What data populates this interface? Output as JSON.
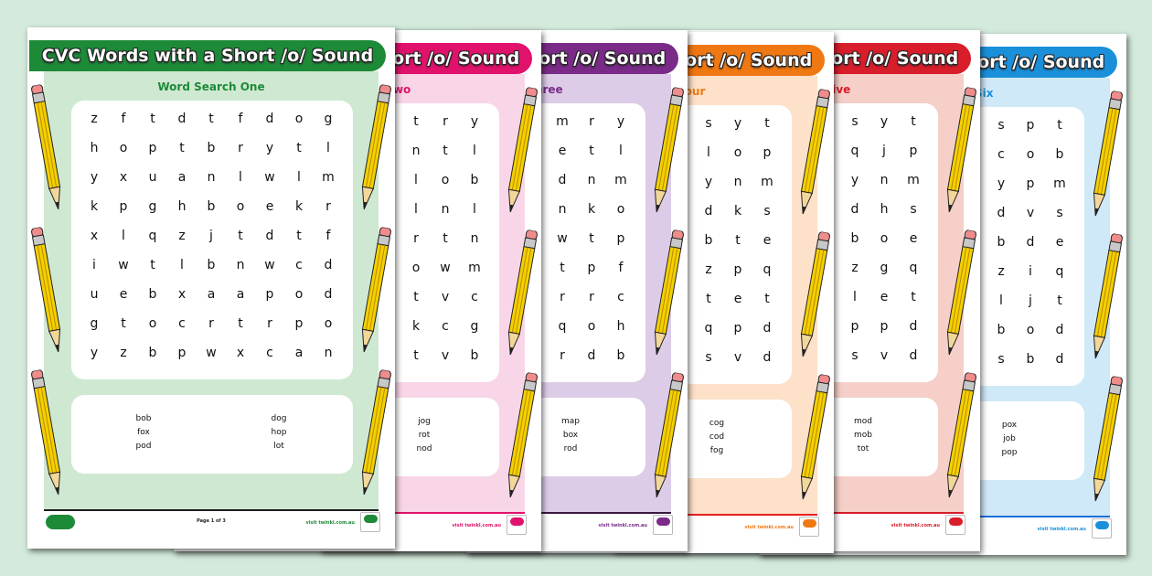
{
  "title": "CVC Words with a Short /o/ Sound",
  "footer_site": "visit twinkl.com.au",
  "logo_text": "twinkl",
  "pages": [
    {
      "subtitle": "Word Search One",
      "accent": "#1d8a38",
      "panel": "#cfe8d2",
      "line": "#1d1d1d",
      "page_label": "Page 1 of 3",
      "grid": [
        [
          "z",
          "f",
          "t",
          "d",
          "t",
          "f",
          "d",
          "o",
          "g"
        ],
        [
          "h",
          "o",
          "p",
          "t",
          "b",
          "r",
          "y",
          "t",
          "l"
        ],
        [
          "y",
          "x",
          "u",
          "a",
          "n",
          "l",
          "w",
          "l",
          "m"
        ],
        [
          "k",
          "p",
          "g",
          "h",
          "b",
          "o",
          "e",
          "k",
          "r"
        ],
        [
          "x",
          "l",
          "q",
          "z",
          "j",
          "t",
          "d",
          "t",
          "f"
        ],
        [
          "i",
          "w",
          "t",
          "l",
          "b",
          "n",
          "w",
          "c",
          "d"
        ],
        [
          "u",
          "e",
          "b",
          "x",
          "a",
          "a",
          "p",
          "o",
          "d"
        ],
        [
          "g",
          "t",
          "o",
          "c",
          "r",
          "t",
          "r",
          "p",
          "o"
        ],
        [
          "y",
          "z",
          "b",
          "p",
          "w",
          "x",
          "c",
          "a",
          "n"
        ]
      ],
      "words": [
        [
          "bob",
          "fox",
          "pod"
        ],
        [
          "dog",
          "hop",
          "lot"
        ]
      ]
    },
    {
      "subtitle": "Word Search Two",
      "accent": "#e0126c",
      "panel": "#f8d6e7",
      "line": "#e0126c",
      "page_label": "",
      "grid": [
        [
          "t",
          "r",
          "y"
        ],
        [
          "n",
          "t",
          "l"
        ],
        [
          "l",
          "o",
          "b"
        ],
        [
          "l",
          "n",
          "l"
        ],
        [
          "r",
          "t",
          "n"
        ],
        [
          "o",
          "w",
          "m"
        ],
        [
          "t",
          "v",
          "c"
        ],
        [
          "k",
          "c",
          "g"
        ],
        [
          "t",
          "v",
          "b"
        ]
      ],
      "words": [
        [
          "jog",
          "rot",
          "nod"
        ]
      ]
    },
    {
      "subtitle": "Word Search Three",
      "accent": "#7a2b88",
      "panel": "#dccce7",
      "line": "#3a1a40",
      "page_label": "",
      "grid": [
        [
          "m",
          "r",
          "y"
        ],
        [
          "e",
          "t",
          "l"
        ],
        [
          "d",
          "n",
          "m"
        ],
        [
          "n",
          "k",
          "o"
        ],
        [
          "w",
          "t",
          "p"
        ],
        [
          "t",
          "p",
          "f"
        ],
        [
          "r",
          "r",
          "c"
        ],
        [
          "q",
          "o",
          "h"
        ],
        [
          "r",
          "d",
          "b"
        ]
      ],
      "words": [
        [
          "map",
          "box",
          "rod"
        ]
      ]
    },
    {
      "subtitle": "Word Search Four",
      "accent": "#f07813",
      "panel": "#fde1c9",
      "line": "#e8201e",
      "page_label": "",
      "grid": [
        [
          "s",
          "y",
          "t"
        ],
        [
          "l",
          "o",
          "p"
        ],
        [
          "y",
          "n",
          "m"
        ],
        [
          "d",
          "k",
          "s"
        ],
        [
          "b",
          "t",
          "e"
        ],
        [
          "z",
          "p",
          "q"
        ],
        [
          "t",
          "e",
          "t"
        ],
        [
          "q",
          "p",
          "d"
        ],
        [
          "s",
          "v",
          "d"
        ]
      ],
      "words": [
        [
          "cog",
          "cod",
          "fog"
        ]
      ]
    },
    {
      "subtitle": "Word Search Five",
      "accent": "#d81d2b",
      "panel": "#f5cfc8",
      "line": "#d81d2b",
      "page_label": "",
      "grid": [
        [
          "s",
          "y",
          "t"
        ],
        [
          "q",
          "j",
          "p"
        ],
        [
          "y",
          "n",
          "m"
        ],
        [
          "d",
          "h",
          "s"
        ],
        [
          "b",
          "o",
          "e"
        ],
        [
          "z",
          "g",
          "q"
        ],
        [
          "l",
          "e",
          "t"
        ],
        [
          "p",
          "p",
          "d"
        ],
        [
          "s",
          "v",
          "d"
        ]
      ],
      "words": [
        [
          "mod",
          "mob",
          "tot"
        ]
      ]
    },
    {
      "subtitle": "Word Search Six",
      "accent": "#1b90da",
      "panel": "#d0e9f9",
      "line": "#1b6fd8",
      "page_label": "",
      "grid": [
        [
          "s",
          "p",
          "t"
        ],
        [
          "c",
          "o",
          "b"
        ],
        [
          "y",
          "p",
          "m"
        ],
        [
          "d",
          "v",
          "s"
        ],
        [
          "b",
          "d",
          "e"
        ],
        [
          "z",
          "i",
          "q"
        ],
        [
          "l",
          "j",
          "t"
        ],
        [
          "b",
          "o",
          "d"
        ],
        [
          "s",
          "b",
          "d"
        ]
      ],
      "words": [
        [
          "pox",
          "job",
          "pop"
        ]
      ]
    }
  ]
}
